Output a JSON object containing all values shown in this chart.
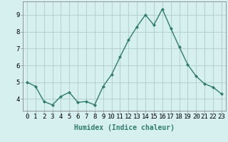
{
  "x": [
    0,
    1,
    2,
    3,
    4,
    5,
    6,
    7,
    8,
    9,
    10,
    11,
    12,
    13,
    14,
    15,
    16,
    17,
    18,
    19,
    20,
    21,
    22,
    23
  ],
  "y": [
    5.0,
    4.75,
    3.85,
    3.65,
    4.15,
    4.4,
    3.8,
    3.85,
    3.65,
    4.75,
    5.45,
    6.5,
    7.5,
    8.3,
    9.0,
    8.4,
    9.35,
    8.2,
    7.1,
    6.05,
    5.35,
    4.9,
    4.7,
    4.3
  ],
  "line_color": "#2e7d6e",
  "marker": "D",
  "marker_size": 2.0,
  "line_width": 1.0,
  "bg_color": "#d6efef",
  "grid_color": "#b0cccc",
  "xlabel": "Humidex (Indice chaleur)",
  "xlabel_fontsize": 7,
  "xtick_labels": [
    "0",
    "1",
    "2",
    "3",
    "4",
    "5",
    "6",
    "7",
    "8",
    "9",
    "10",
    "11",
    "12",
    "13",
    "14",
    "15",
    "16",
    "17",
    "18",
    "19",
    "20",
    "21",
    "22",
    "23"
  ],
  "ytick_labels": [
    "4",
    "5",
    "6",
    "7",
    "8",
    "9"
  ],
  "yticks": [
    4,
    5,
    6,
    7,
    8,
    9
  ],
  "ylim": [
    3.3,
    9.8
  ],
  "xlim": [
    -0.5,
    23.5
  ],
  "tick_fontsize": 6.5,
  "spine_color": "#888888"
}
